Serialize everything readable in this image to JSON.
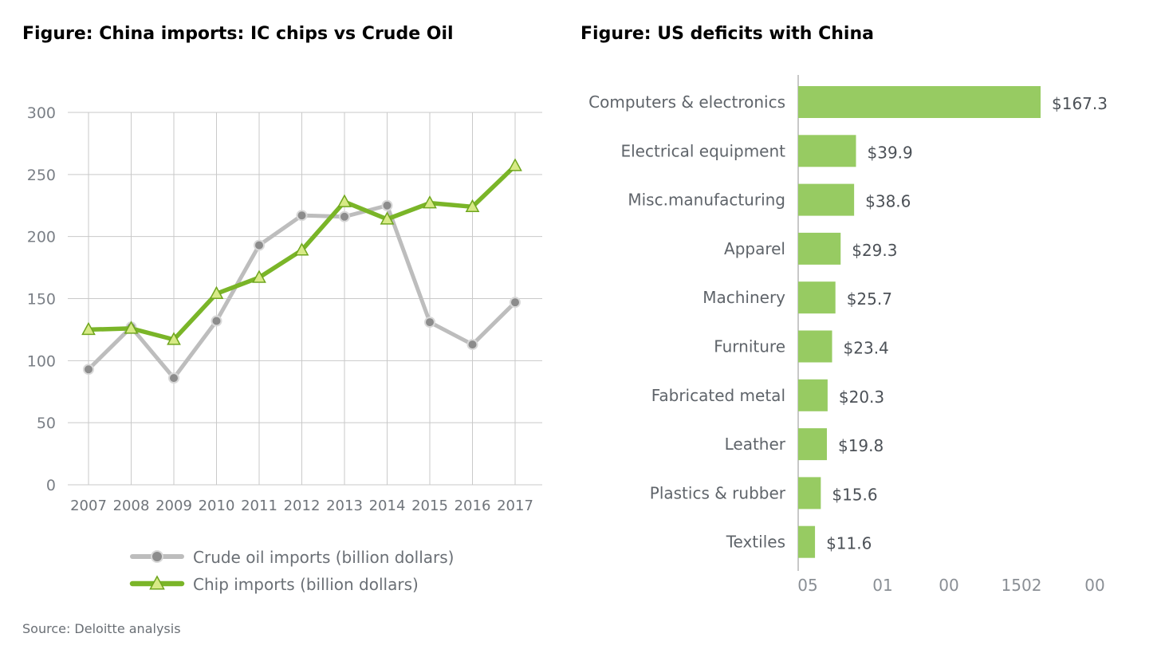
{
  "titles": {
    "left": "Figure: China imports: IC chips vs Crude Oil",
    "right": "Figure: US deficits with China"
  },
  "source": "Source: Deloitte analysis",
  "chart_data": [
    {
      "type": "line",
      "title": "Figure: China imports: IC chips vs Crude Oil",
      "x": [
        "2007",
        "2008",
        "2009",
        "2010",
        "2011",
        "2012",
        "2013",
        "2014",
        "2015",
        "2016",
        "2017"
      ],
      "ylim": [
        0,
        300
      ],
      "yticks": [
        0,
        50,
        100,
        150,
        200,
        250,
        300
      ],
      "grid": true,
      "legend": "bottom",
      "series": [
        {
          "name": "Crude oil imports (billion dollars)",
          "color": "#bdbdbd",
          "marker": "circle",
          "values": [
            93,
            127,
            86,
            132,
            193,
            217,
            216,
            225,
            131,
            113,
            147
          ]
        },
        {
          "name": "Chip imports (billion dollars)",
          "color": "#7ab528",
          "marker": "triangle",
          "values": [
            125,
            126,
            117,
            154,
            167,
            189,
            228,
            214,
            227,
            224,
            257
          ]
        }
      ]
    },
    {
      "type": "bar",
      "orientation": "horizontal",
      "title": "Figure: US deficits with China",
      "categories": [
        "Computers & electronics",
        "Electrical equipment",
        "Misc.manufacturing",
        "Apparel",
        "Machinery",
        "Furniture",
        "Fabricated metal",
        "Leather",
        "Plastics & rubber",
        "Textiles"
      ],
      "values": [
        167.3,
        39.9,
        38.6,
        29.3,
        25.7,
        23.4,
        20.3,
        19.8,
        15.6,
        11.6
      ],
      "value_labels": [
        "$167.3",
        "$39.9",
        "$38.6",
        "$29.3",
        "$25.7",
        "$23.4",
        "$20.3",
        "$19.8",
        "$15.6",
        "$11.6"
      ],
      "xlim": [
        0,
        200
      ],
      "xtick_labels": [
        "05",
        "01",
        "00",
        "1502",
        "00"
      ],
      "color": "#97cb62"
    }
  ]
}
